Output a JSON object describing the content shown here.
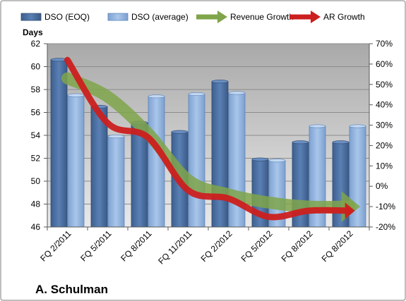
{
  "chart_data": {
    "type": "bar",
    "categories": [
      "FQ 2/2011",
      "FQ 5/2011",
      "FQ 8/2011",
      "FQ 11/2011",
      "FQ 2/2012",
      "FQ 5/2012",
      "FQ 8/2012",
      "FQ 8/2012"
    ],
    "series": [
      {
        "name": "DSO (EOQ)",
        "type": "bar",
        "axis": "left",
        "color": "#4a6ea0",
        "values": [
          60.6,
          56.5,
          55.1,
          54.3,
          58.7,
          51.9,
          53.4,
          53.4
        ]
      },
      {
        "name": "DSO (average)",
        "type": "bar",
        "axis": "left",
        "color": "#8fb1de",
        "values": [
          57.5,
          53.9,
          57.4,
          57.6,
          57.7,
          51.8,
          54.8,
          54.8
        ]
      },
      {
        "name": "Revenue Growth",
        "type": "line",
        "axis": "right",
        "color": "#7fa54a",
        "values": [
          53,
          44,
          26,
          3,
          -4,
          -8,
          -10,
          -10
        ]
      },
      {
        "name": "AR Growth",
        "type": "line",
        "axis": "right",
        "color": "#cc1f1f",
        "values": [
          62,
          31,
          24,
          -2,
          -6,
          -15,
          -12,
          -12
        ]
      }
    ],
    "ylabel": "Days",
    "ylim": [
      46,
      62
    ],
    "yticks": [
      "46",
      "48",
      "50",
      "52",
      "54",
      "56",
      "58",
      "60",
      "62"
    ],
    "y2lim": [
      -20,
      70
    ],
    "y2ticks": [
      "-20%",
      "-10%",
      "0%",
      "10%",
      "20%",
      "30%",
      "40%",
      "50%",
      "60%",
      "70%"
    ],
    "legend": "top",
    "grid": true,
    "footer": "A. Schulman"
  }
}
